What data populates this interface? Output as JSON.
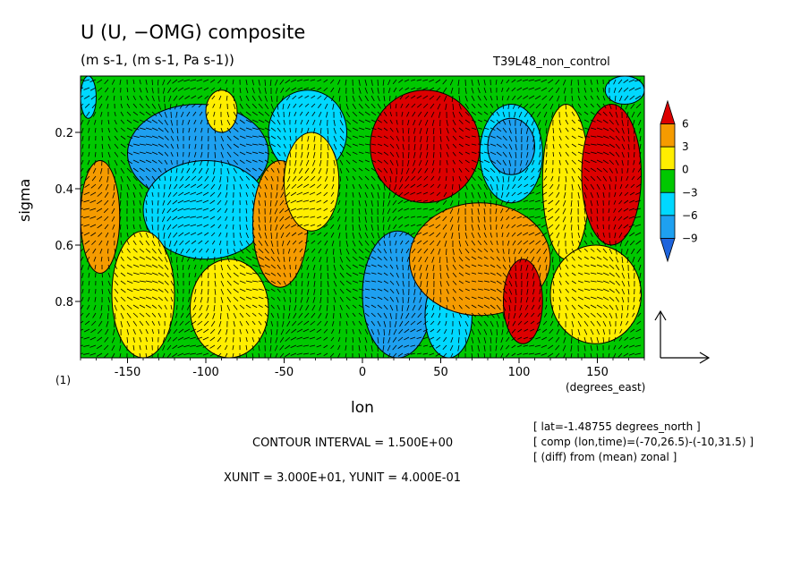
{
  "title": "U (U, −OMG) composite",
  "units": "(m s-1, (m s-1, Pa s-1))",
  "run_label": "T39L48_non_control",
  "x_unit_label": "(degrees_east)",
  "one_label": "(1)",
  "contour_interval": "CONTOUR INTERVAL = 1.500E+00",
  "xyunit": "XUNIT = 3.000E+01, YUNIT = 4.000E-01",
  "notes": [
    "[ lat=-1.48755 degrees_north ]",
    "[ comp (lon,time)=(-70,26.5)-(-10,31.5) ]",
    "[ (diff) from (mean) zonal ]"
  ],
  "colors": {
    "lt_-9": "#1e64dc",
    "-9_-6": "#1ea0f0",
    "-6_-3": "#00d8ff",
    "-3_0": "#00c800",
    "0_3": "#ffee00",
    "3_6": "#f59b00",
    "gt_6": "#dc0000"
  },
  "chart_data": {
    "type": "heatmap",
    "xlabel": "lon",
    "ylabel": "sigma",
    "xlim": [
      -180,
      180
    ],
    "ylim": [
      1.0,
      0.0
    ],
    "xticks": [
      -150,
      -100,
      -50,
      0,
      50,
      100,
      150
    ],
    "yticks": [
      0.2,
      0.4,
      0.6,
      0.8
    ],
    "colorbar_labels": [
      6,
      3,
      0,
      -3,
      -6,
      -9
    ],
    "colorbar_levels": [
      -9,
      -6,
      -3,
      0,
      3,
      6
    ],
    "vector_unit_arrows": {
      "x": 30,
      "y": 0.4
    },
    "regions": [
      {
        "desc": "weak negative",
        "value": -2,
        "lon": [
          -180,
          180
        ],
        "sigma": [
          0.0,
          1.0
        ]
      },
      {
        "value": -8,
        "lon": [
          -150,
          -60
        ],
        "sigma": [
          0.1,
          0.45
        ]
      },
      {
        "value": -5,
        "lon": [
          -140,
          -60
        ],
        "sigma": [
          0.3,
          0.65
        ]
      },
      {
        "value": -5,
        "lon": [
          -60,
          -10
        ],
        "sigma": [
          0.05,
          0.35
        ]
      },
      {
        "value": 4,
        "lon": [
          -180,
          -155
        ],
        "sigma": [
          0.3,
          0.7
        ]
      },
      {
        "value": 1.5,
        "lon": [
          -160,
          -120
        ],
        "sigma": [
          0.55,
          1.0
        ]
      },
      {
        "value": 1.5,
        "lon": [
          -110,
          -60
        ],
        "sigma": [
          0.65,
          1.0
        ]
      },
      {
        "value": 4,
        "lon": [
          -70,
          -35
        ],
        "sigma": [
          0.3,
          0.75
        ]
      },
      {
        "value": 1.5,
        "lon": [
          -50,
          -15
        ],
        "sigma": [
          0.2,
          0.55
        ]
      },
      {
        "value": 1.5,
        "lon": [
          -100,
          -80
        ],
        "sigma": [
          0.05,
          0.2
        ]
      },
      {
        "value": -8,
        "lon": [
          0,
          45
        ],
        "sigma": [
          0.55,
          1.0
        ]
      },
      {
        "value": -5,
        "lon": [
          40,
          70
        ],
        "sigma": [
          0.7,
          1.0
        ]
      },
      {
        "value": 8,
        "lon": [
          5,
          75
        ],
        "sigma": [
          0.05,
          0.45
        ]
      },
      {
        "value": 4,
        "lon": [
          30,
          120
        ],
        "sigma": [
          0.45,
          0.85
        ]
      },
      {
        "value": 8,
        "lon": [
          90,
          115
        ],
        "sigma": [
          0.65,
          0.95
        ]
      },
      {
        "value": -5,
        "lon": [
          75,
          115
        ],
        "sigma": [
          0.1,
          0.45
        ]
      },
      {
        "value": -8,
        "lon": [
          80,
          110
        ],
        "sigma": [
          0.15,
          0.35
        ]
      },
      {
        "value": 1.5,
        "lon": [
          115,
          145
        ],
        "sigma": [
          0.1,
          0.65
        ]
      },
      {
        "value": 8,
        "lon": [
          140,
          178
        ],
        "sigma": [
          0.1,
          0.6
        ]
      },
      {
        "value": 1.5,
        "lon": [
          120,
          178
        ],
        "sigma": [
          0.6,
          0.95
        ]
      },
      {
        "value": -5,
        "lon": [
          -180,
          -170
        ],
        "sigma": [
          0.0,
          0.15
        ]
      },
      {
        "value": -5,
        "lon": [
          155,
          180
        ],
        "sigma": [
          0.0,
          0.1
        ]
      }
    ]
  }
}
